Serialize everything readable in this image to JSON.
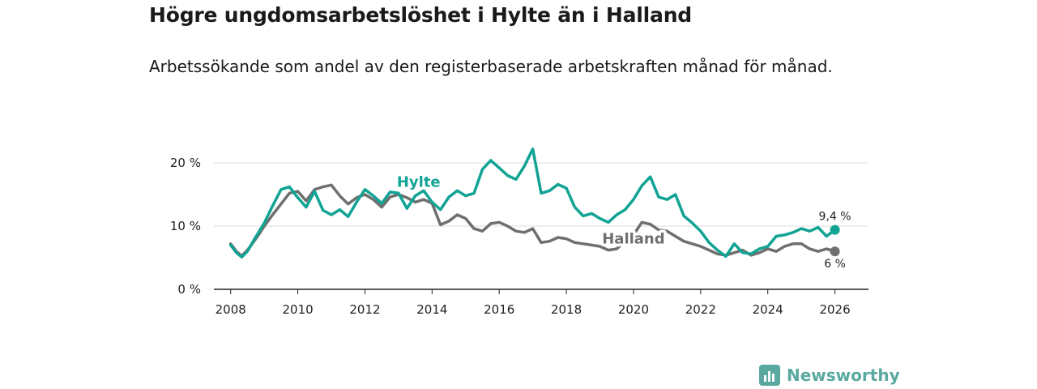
{
  "header": {
    "title": "Högre ungdomsarbetslöshet i Hylte än i Halland",
    "subtitle": "Arbetssökande som andel av den registerbaserade arbetskraften månad för månad."
  },
  "brand": {
    "name": "Newsworthy",
    "color": "#5aa9a0"
  },
  "chart_data": {
    "type": "line",
    "title": "Högre ungdomsarbetslöshet i Hylte än i Halland",
    "xlabel": "",
    "ylabel": "",
    "xlim": [
      2007.5,
      2027.0
    ],
    "ylim": [
      0,
      20
    ],
    "y_ticks": [
      {
        "value": 0,
        "label": "0 %"
      },
      {
        "value": 10,
        "label": "10 %"
      },
      {
        "value": 20,
        "label": "20 %"
      }
    ],
    "x_ticks": [
      {
        "value": 2008,
        "label": "2008"
      },
      {
        "value": 2010,
        "label": "2010"
      },
      {
        "value": 2012,
        "label": "2012"
      },
      {
        "value": 2014,
        "label": "2014"
      },
      {
        "value": 2016,
        "label": "2016"
      },
      {
        "value": 2018,
        "label": "2018"
      },
      {
        "value": 2020,
        "label": "2020"
      },
      {
        "value": 2022,
        "label": "2022"
      },
      {
        "value": 2024,
        "label": "2024"
      },
      {
        "value": 2026,
        "label": "2026"
      }
    ],
    "grid": true,
    "series": [
      {
        "name": "Halland",
        "color": "#6f6f6f",
        "end_label": "6 %",
        "label_at": [
          2020.0,
          8.0
        ],
        "x": [
          2008.0,
          2008.17,
          2008.33,
          2008.5,
          2008.67,
          2008.83,
          2009.0,
          2009.25,
          2009.5,
          2009.75,
          2010.0,
          2010.25,
          2010.5,
          2010.75,
          2011.0,
          2011.25,
          2011.5,
          2011.75,
          2012.0,
          2012.25,
          2012.5,
          2012.75,
          2013.0,
          2013.25,
          2013.5,
          2013.75,
          2014.0,
          2014.25,
          2014.5,
          2014.75,
          2015.0,
          2015.25,
          2015.5,
          2015.75,
          2016.0,
          2016.25,
          2016.5,
          2016.75,
          2017.0,
          2017.25,
          2017.5,
          2017.75,
          2018.0,
          2018.25,
          2018.5,
          2018.75,
          2019.0,
          2019.25,
          2019.5,
          2019.75,
          2020.0,
          2020.25,
          2020.5,
          2020.75,
          2021.0,
          2021.25,
          2021.5,
          2021.75,
          2022.0,
          2022.25,
          2022.5,
          2022.75,
          2023.0,
          2023.25,
          2023.5,
          2023.75,
          2024.0,
          2024.25,
          2024.5,
          2024.75,
          2025.0,
          2025.25,
          2025.5,
          2025.75,
          2026.0
        ],
        "values": [
          7.2,
          6.0,
          5.3,
          6.2,
          7.4,
          8.6,
          10.0,
          11.8,
          13.5,
          15.2,
          15.5,
          14.0,
          15.8,
          16.2,
          16.5,
          14.8,
          13.5,
          14.5,
          15.0,
          14.2,
          13.0,
          14.6,
          15.0,
          14.5,
          13.8,
          14.2,
          13.6,
          10.2,
          10.8,
          11.8,
          11.2,
          9.6,
          9.2,
          10.4,
          10.6,
          10.0,
          9.2,
          9.0,
          9.6,
          7.4,
          7.6,
          8.2,
          8.0,
          7.4,
          7.2,
          7.0,
          6.8,
          6.2,
          6.4,
          7.6,
          8.6,
          10.6,
          10.3,
          9.4,
          9.2,
          8.4,
          7.6,
          7.2,
          6.8,
          6.2,
          5.6,
          5.4,
          5.8,
          6.2,
          5.4,
          5.8,
          6.4,
          6.0,
          6.8,
          7.2,
          7.2,
          6.4,
          6.0,
          6.4,
          6.0
        ]
      },
      {
        "name": "Hylte",
        "color": "#11a394",
        "end_label": "9,4 %",
        "label_at": [
          2013.6,
          17.0
        ],
        "x": [
          2008.0,
          2008.17,
          2008.33,
          2008.5,
          2008.67,
          2008.83,
          2009.0,
          2009.25,
          2009.5,
          2009.75,
          2010.0,
          2010.25,
          2010.5,
          2010.75,
          2011.0,
          2011.25,
          2011.5,
          2011.75,
          2012.0,
          2012.25,
          2012.5,
          2012.75,
          2013.0,
          2013.25,
          2013.5,
          2013.75,
          2014.0,
          2014.25,
          2014.5,
          2014.75,
          2015.0,
          2015.25,
          2015.5,
          2015.75,
          2016.0,
          2016.25,
          2016.5,
          2016.75,
          2017.0,
          2017.25,
          2017.5,
          2017.75,
          2018.0,
          2018.25,
          2018.5,
          2018.75,
          2019.0,
          2019.25,
          2019.5,
          2019.75,
          2020.0,
          2020.25,
          2020.5,
          2020.75,
          2021.0,
          2021.25,
          2021.5,
          2021.75,
          2022.0,
          2022.25,
          2022.5,
          2022.75,
          2023.0,
          2023.25,
          2023.5,
          2023.75,
          2024.0,
          2024.25,
          2024.5,
          2024.75,
          2025.0,
          2025.25,
          2025.5,
          2025.75,
          2026.0
        ],
        "values": [
          7.0,
          5.8,
          5.1,
          6.0,
          7.6,
          9.0,
          10.5,
          13.2,
          15.8,
          16.2,
          14.5,
          13.0,
          15.5,
          12.5,
          11.8,
          12.6,
          11.5,
          13.8,
          15.8,
          14.8,
          13.6,
          15.4,
          15.2,
          12.8,
          14.8,
          15.6,
          13.8,
          12.6,
          14.6,
          15.6,
          14.8,
          15.2,
          19.0,
          20.4,
          19.2,
          18.0,
          17.4,
          19.5,
          22.2,
          15.2,
          15.6,
          16.6,
          16.0,
          13.0,
          11.6,
          12.0,
          11.2,
          10.6,
          11.8,
          12.6,
          14.2,
          16.4,
          17.8,
          14.6,
          14.2,
          15.0,
          11.6,
          10.5,
          9.2,
          7.4,
          6.2,
          5.2,
          7.2,
          5.8,
          5.6,
          6.4,
          6.8,
          8.4,
          8.6,
          9.0,
          9.6,
          9.2,
          9.8,
          8.4,
          9.4
        ]
      }
    ]
  }
}
